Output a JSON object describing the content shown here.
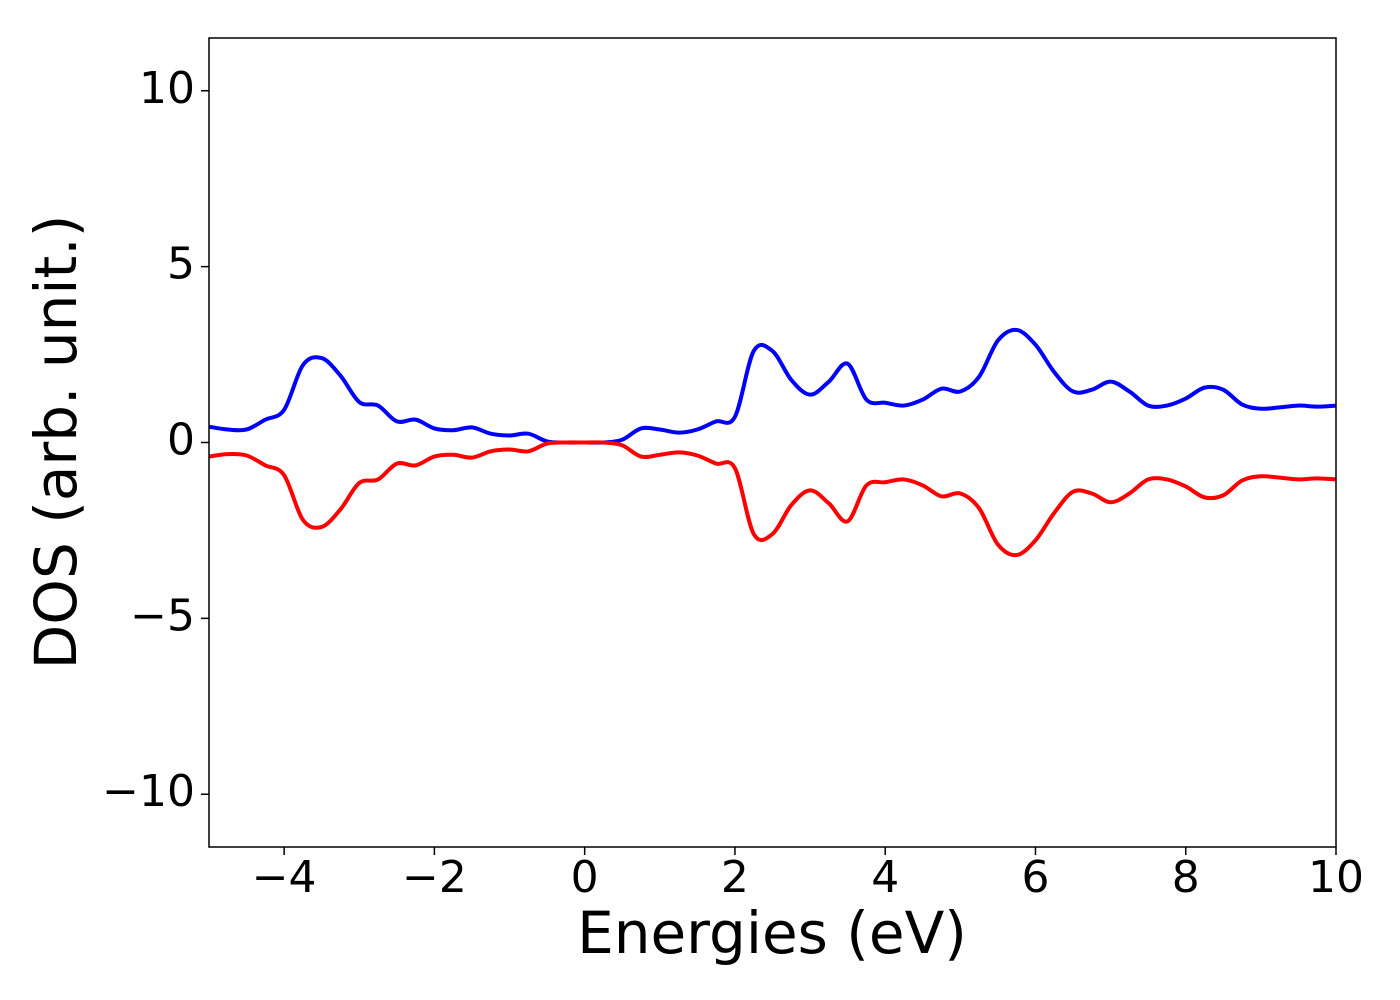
{
  "chart_data": {
    "type": "line",
    "xlabel": "Energies (eV)",
    "ylabel": "DOS (arb. unit.)",
    "x": [
      -5,
      -4.75,
      -4.5,
      -4.25,
      -4,
      -3.75,
      -3.5,
      -3.25,
      -3,
      -2.75,
      -2.5,
      -2.25,
      -2,
      -1.75,
      -1.5,
      -1.25,
      -1,
      -0.75,
      -0.5,
      -0.25,
      0,
      0.25,
      0.5,
      0.75,
      1,
      1.25,
      1.5,
      1.75,
      2,
      2.25,
      2.5,
      2.75,
      3,
      3.25,
      3.5,
      3.75,
      4,
      4.25,
      4.5,
      4.75,
      5,
      5.25,
      5.5,
      5.75,
      6,
      6.25,
      6.5,
      6.75,
      7,
      7.25,
      7.5,
      7.75,
      8,
      8.25,
      8.5,
      8.75,
      9,
      9.25,
      9.5,
      9.75,
      10
    ],
    "series": [
      {
        "color": "#0000ff",
        "values": [
          0.45,
          0.37,
          0.37,
          0.65,
          0.93,
          2.2,
          2.4,
          1.9,
          1.15,
          1.05,
          0.6,
          0.65,
          0.4,
          0.35,
          0.43,
          0.25,
          0.2,
          0.25,
          0.03,
          0,
          0,
          0,
          0.08,
          0.4,
          0.37,
          0.28,
          0.37,
          0.6,
          0.73,
          2.6,
          2.6,
          1.78,
          1.36,
          1.73,
          2.24,
          1.22,
          1.13,
          1.05,
          1.22,
          1.53,
          1.45,
          1.87,
          2.9,
          3.2,
          2.78,
          2.0,
          1.45,
          1.5,
          1.73,
          1.45,
          1.05,
          1.05,
          1.25,
          1.56,
          1.5,
          1.08,
          0.96,
          1.0,
          1.05,
          1.02,
          1.05
        ]
      },
      {
        "color": "#ff0000",
        "values": [
          -0.4,
          -0.33,
          -0.37,
          -0.65,
          -0.93,
          -2.2,
          -2.4,
          -1.9,
          -1.15,
          -1.05,
          -0.6,
          -0.65,
          -0.4,
          -0.35,
          -0.43,
          -0.25,
          -0.2,
          -0.25,
          -0.03,
          0,
          0,
          0,
          -0.08,
          -0.4,
          -0.35,
          -0.28,
          -0.37,
          -0.6,
          -0.73,
          -2.6,
          -2.6,
          -1.78,
          -1.36,
          -1.73,
          -2.24,
          -1.22,
          -1.13,
          -1.05,
          -1.22,
          -1.53,
          -1.45,
          -1.87,
          -2.9,
          -3.2,
          -2.78,
          -2.0,
          -1.4,
          -1.45,
          -1.7,
          -1.45,
          -1.05,
          -1.05,
          -1.25,
          -1.56,
          -1.5,
          -1.08,
          -0.96,
          -1.0,
          -1.05,
          -1.02,
          -1.05
        ]
      }
    ],
    "xlim": [
      -5,
      10
    ],
    "ylim": [
      -11.5,
      11.5
    ],
    "xticks": [
      {
        "value": -4,
        "label": "−4"
      },
      {
        "value": -2,
        "label": "−2"
      },
      0,
      2,
      4,
      6,
      8,
      10
    ],
    "yticks": [
      {
        "value": -10,
        "label": "−10"
      },
      {
        "value": -5,
        "label": "−5"
      },
      0,
      5,
      10
    ],
    "grid": false
  }
}
